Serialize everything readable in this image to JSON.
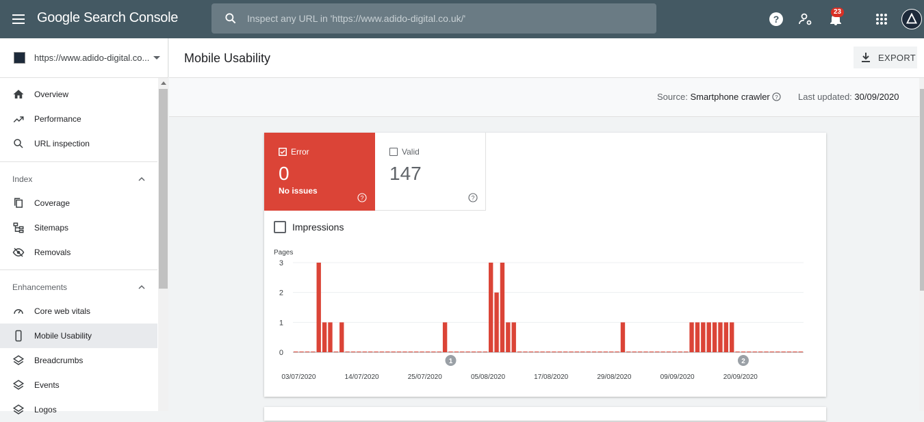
{
  "topbar": {
    "logo": "Google Search Console",
    "search_placeholder": "Inspect any URL in 'https://www.adido-digital.co.uk/'",
    "notifications_count": "23",
    "icons": [
      "menu-icon",
      "search-icon",
      "help-icon",
      "manage-users-icon",
      "bell-icon",
      "apps-icon",
      "avatar"
    ]
  },
  "sidebar": {
    "property": "https://www.adido-digital.co...",
    "items": [
      {
        "label": "Overview",
        "icon": "home-icon"
      },
      {
        "label": "Performance",
        "icon": "trending-up-icon"
      },
      {
        "label": "URL inspection",
        "icon": "search-icon"
      }
    ],
    "sections": [
      {
        "label": "Index",
        "items": [
          {
            "label": "Coverage",
            "icon": "copy-icon"
          },
          {
            "label": "Sitemaps",
            "icon": "sitemap-icon"
          },
          {
            "label": "Removals",
            "icon": "eye-off-icon"
          }
        ]
      },
      {
        "label": "Enhancements",
        "items": [
          {
            "label": "Core web vitals",
            "icon": "speedometer-icon"
          },
          {
            "label": "Mobile Usability",
            "icon": "phone-icon",
            "active": true
          },
          {
            "label": "Breadcrumbs",
            "icon": "layers-icon"
          },
          {
            "label": "Events",
            "icon": "layers-icon"
          },
          {
            "label": "Logos",
            "icon": "layers-icon"
          }
        ]
      }
    ]
  },
  "header": {
    "title": "Mobile Usability",
    "export_label": "EXPORT"
  },
  "subheader": {
    "source_label": "Source:",
    "source_value": "Smartphone crawler",
    "updated_label": "Last updated:",
    "updated_value": "30/09/2020"
  },
  "tiles": {
    "error": {
      "label": "Error",
      "value": "0",
      "sub": "No issues",
      "checked": true,
      "color": "#db4437"
    },
    "valid": {
      "label": "Valid",
      "value": "147",
      "checked": false
    }
  },
  "impressions_label": "Impressions",
  "chart_data": {
    "type": "bar",
    "ylabel": "Pages",
    "ylim": [
      0,
      3
    ],
    "yticks": [
      0,
      1,
      2,
      3
    ],
    "x_tick_labels": [
      "03/07/2020",
      "14/07/2020",
      "25/07/2020",
      "05/08/2020",
      "17/08/2020",
      "29/08/2020",
      "09/09/2020",
      "20/09/2020"
    ],
    "start_date": "2020-07-03",
    "color": "#db4437",
    "annotations": [
      {
        "label": "1",
        "day_index": 27
      },
      {
        "label": "2",
        "day_index": 78
      }
    ],
    "values": [
      0,
      0,
      0,
      0,
      3,
      1,
      1,
      0,
      1,
      0,
      0,
      0,
      0,
      0,
      0,
      0,
      0,
      0,
      0,
      0,
      0,
      0,
      0,
      0,
      0,
      0,
      1,
      0,
      0,
      0,
      0,
      0,
      0,
      0,
      3,
      2,
      3,
      1,
      1,
      0,
      0,
      0,
      0,
      0,
      0,
      0,
      0,
      0,
      0,
      0,
      0,
      0,
      0,
      0,
      0,
      0,
      0,
      1,
      0,
      0,
      0,
      0,
      0,
      0,
      0,
      0,
      0,
      0,
      0,
      1,
      1,
      1,
      1,
      1,
      1,
      1,
      1,
      0,
      0,
      0,
      0,
      0,
      0,
      0,
      0,
      0,
      0,
      0,
      0
    ]
  }
}
